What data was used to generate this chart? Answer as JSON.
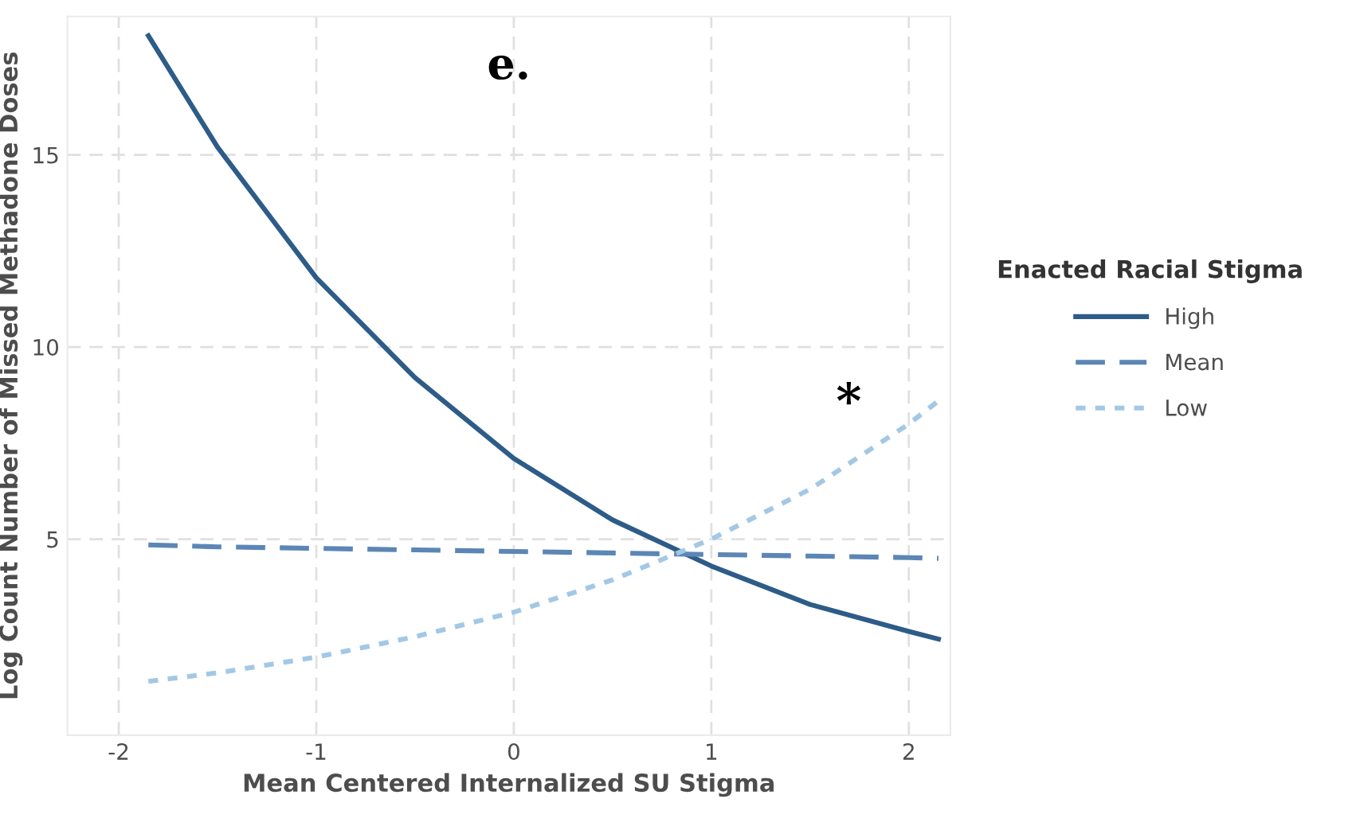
{
  "chart_data": {
    "type": "line",
    "xlabel": "Mean Centered Internalized SU Stigma",
    "ylabel": "Log Count Number of Missed Methadone Doses",
    "legend_title": "Enacted Racial Stigma",
    "x": [
      -1.85,
      -1.5,
      -1,
      -0.5,
      0,
      0.5,
      1,
      1.5,
      2,
      2.15
    ],
    "series": [
      {
        "name": "High",
        "color": "#2d5c88",
        "line_style": "solid",
        "values": [
          18.1,
          15.2,
          11.8,
          9.2,
          7.1,
          5.5,
          4.3,
          3.3,
          2.6,
          2.4
        ]
      },
      {
        "name": "Mean",
        "color": "#5b86b5",
        "line_style": "dashed",
        "values": [
          4.85,
          4.8,
          4.76,
          4.72,
          4.68,
          4.64,
          4.6,
          4.56,
          4.52,
          4.5
        ]
      },
      {
        "name": "Low",
        "color": "#a3c8e6",
        "line_style": "dotted",
        "values": [
          1.3,
          1.52,
          1.93,
          2.46,
          3.1,
          3.94,
          5.0,
          6.3,
          8.0,
          8.6
        ]
      }
    ],
    "xlim": [
      -2.26,
      2.21
    ],
    "ylim": [
      -0.1,
      18.6
    ],
    "xticks": [
      -2,
      -1,
      0,
      1,
      2
    ],
    "yticks": [
      5,
      10,
      15
    ],
    "grid": true,
    "legend": "right",
    "marker": "none",
    "annotations": [
      "e.",
      "*"
    ]
  }
}
